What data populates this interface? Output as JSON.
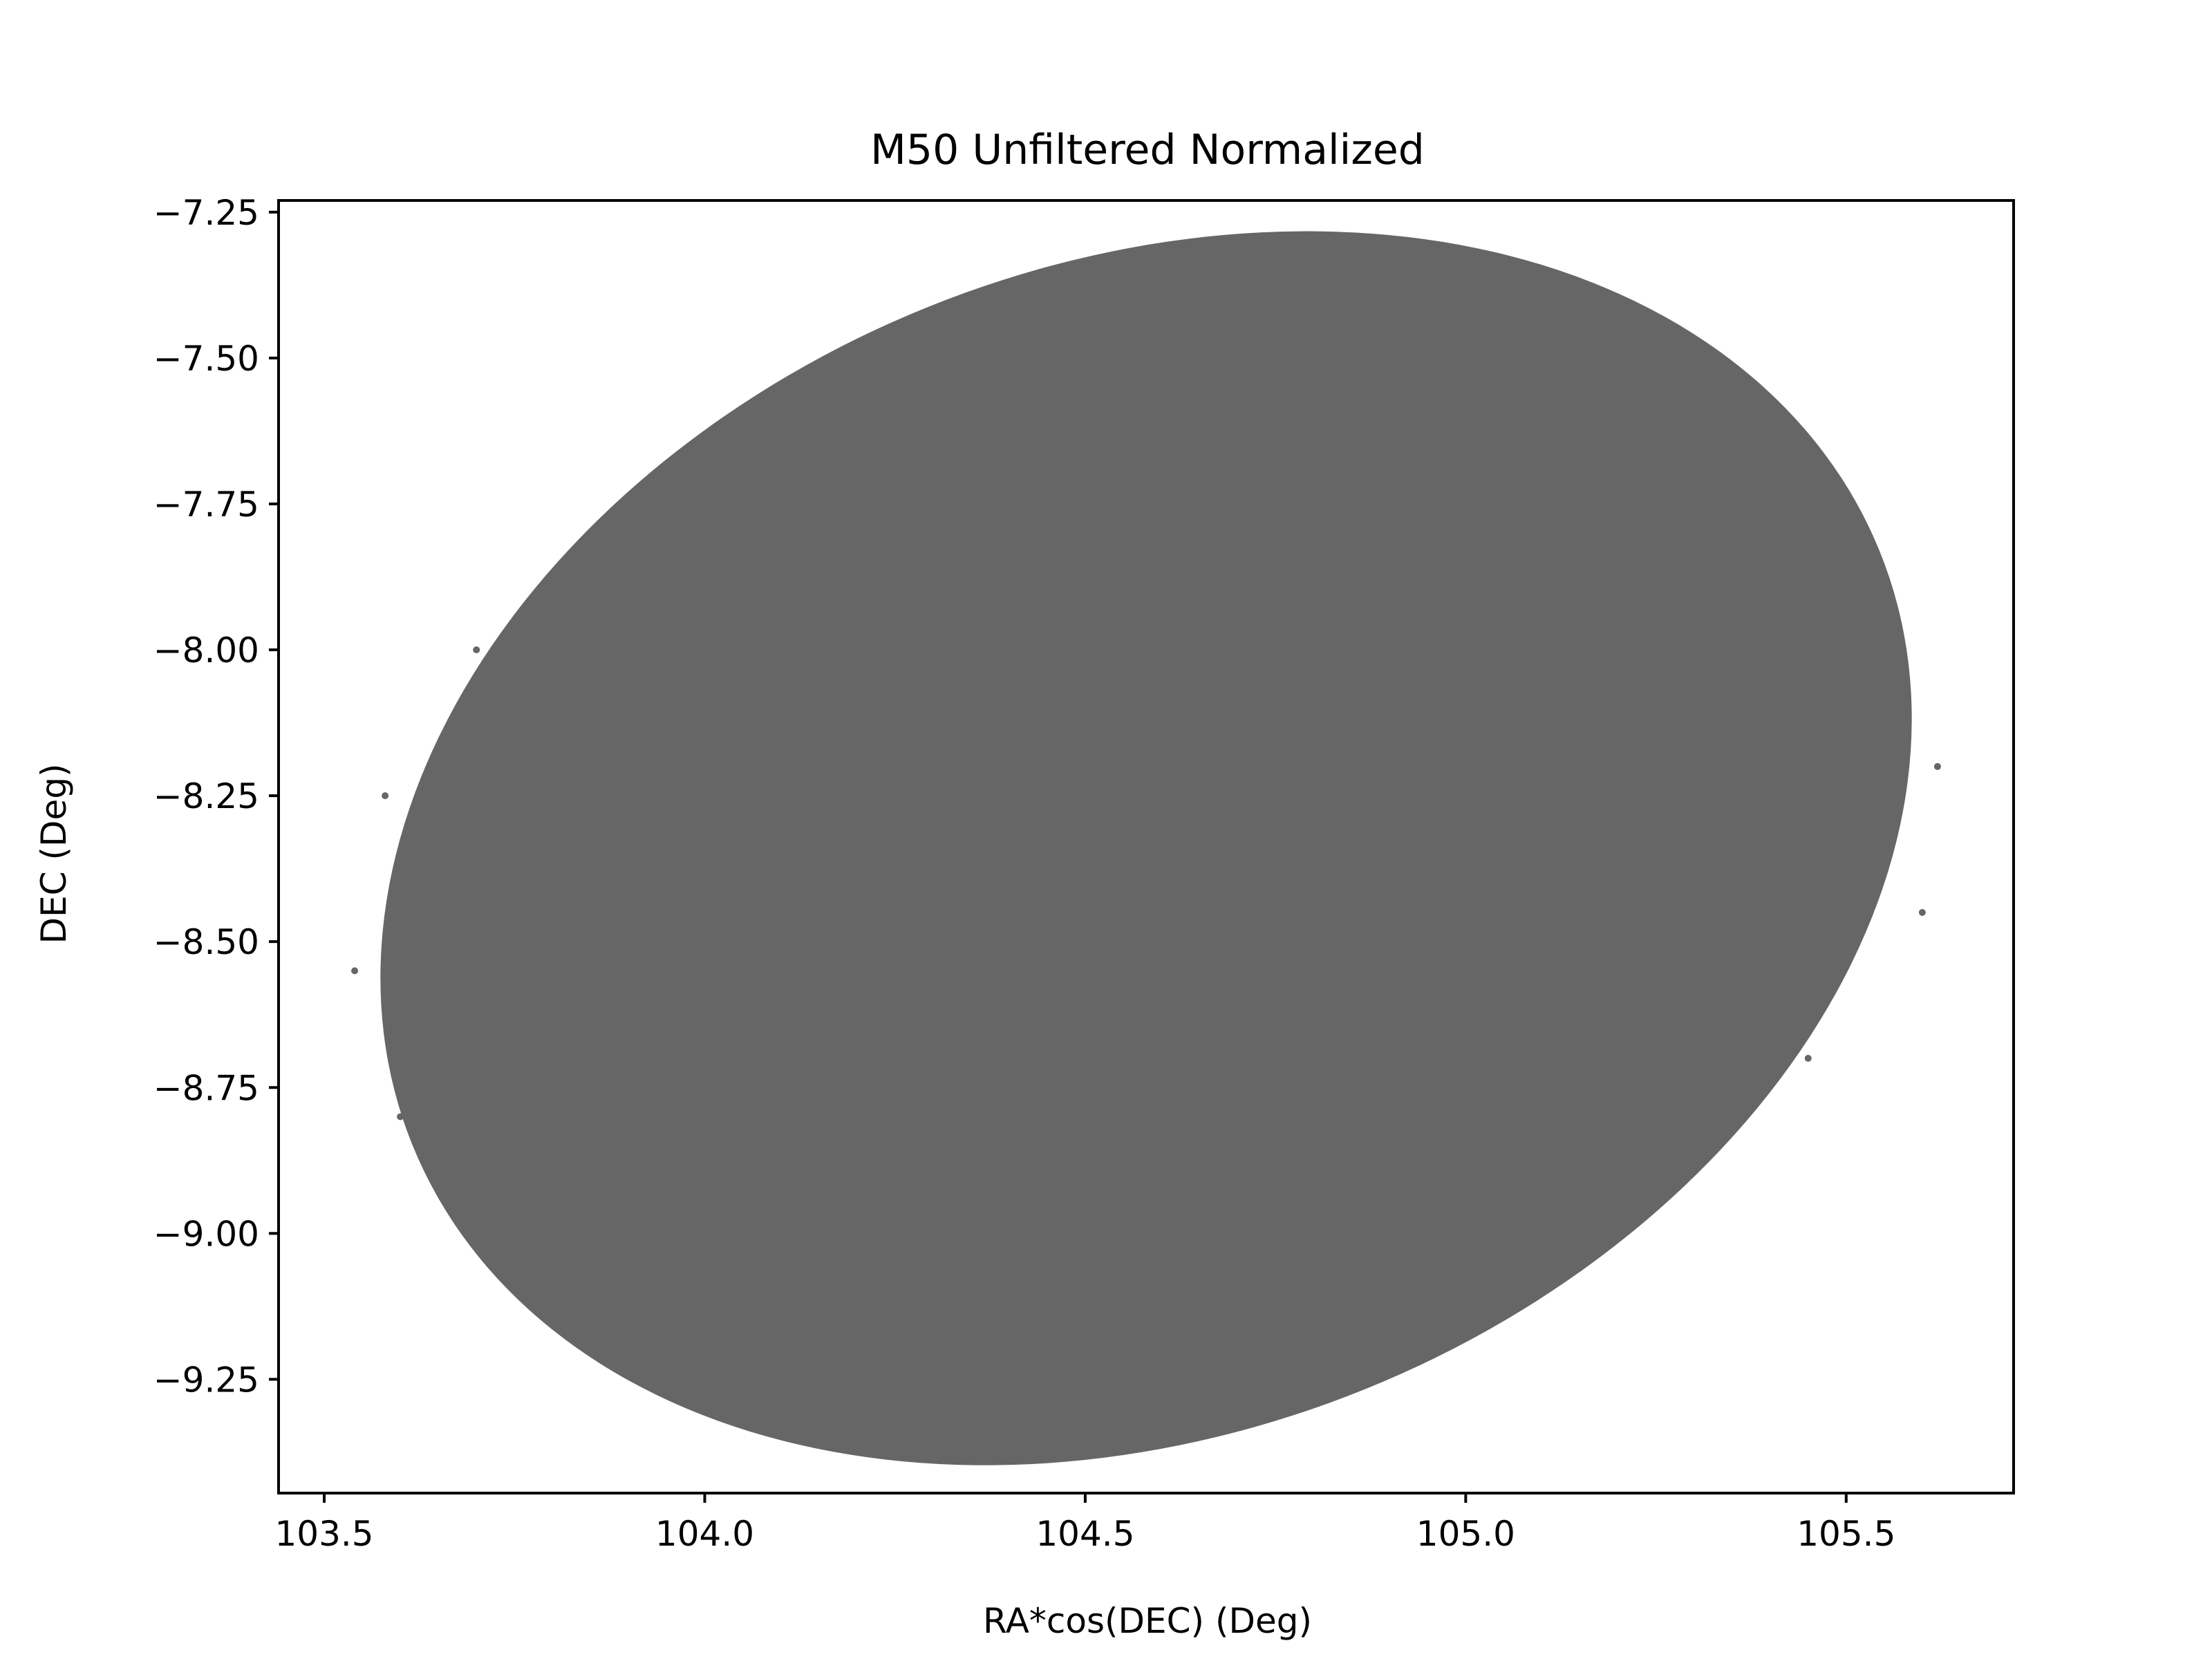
{
  "chart_data": {
    "type": "scatter",
    "title": "M50 Unfiltered Normalized",
    "xlabel": "RA*cos(DEC) (Deg)",
    "ylabel": "DEC (Deg)",
    "xlim": [
      103.44,
      105.72
    ],
    "ylim": [
      -9.445,
      -7.23
    ],
    "x_ticks": [
      103.5,
      104.0,
      104.5,
      105.0,
      105.5
    ],
    "x_tick_labels": [
      "103.5",
      "104.0",
      "104.5",
      "105.0",
      "105.5"
    ],
    "y_ticks": [
      -7.25,
      -7.5,
      -7.75,
      -8.0,
      -8.25,
      -8.5,
      -8.75,
      -9.0,
      -9.25
    ],
    "y_tick_labels": [
      "−7.25",
      "−7.50",
      "−7.75",
      "−8.00",
      "−8.25",
      "−8.50",
      "−8.75",
      "−9.00",
      "−9.25"
    ],
    "grid": false,
    "legend": false,
    "marker_color": "#666666",
    "series": [
      {
        "region": "ellipse",
        "center": [
          104.58,
          -8.34
        ],
        "extent_ra_deg": [
          103.54,
          105.62
        ],
        "extent_dec_deg": [
          -9.34,
          -7.34
        ],
        "points": [
          [
            104.58,
            -7.34
          ],
          [
            104.8,
            -7.345
          ],
          [
            105.0,
            -7.39
          ],
          [
            105.2,
            -7.52
          ],
          [
            105.4,
            -7.78
          ],
          [
            105.56,
            -8.0
          ],
          [
            105.62,
            -8.2
          ],
          [
            105.6,
            -8.45
          ],
          [
            105.45,
            -8.7
          ],
          [
            105.25,
            -8.92
          ],
          [
            105.0,
            -9.09
          ],
          [
            104.7,
            -9.25
          ],
          [
            104.4,
            -9.33
          ],
          [
            104.2,
            -9.33
          ],
          [
            103.95,
            -9.24
          ],
          [
            103.75,
            -9.05
          ],
          [
            103.6,
            -8.8
          ],
          [
            103.54,
            -8.55
          ],
          [
            103.58,
            -8.25
          ],
          [
            103.7,
            -8.0
          ],
          [
            103.9,
            -7.78
          ],
          [
            104.1,
            -7.6
          ],
          [
            104.35,
            -7.42
          ],
          [
            104.58,
            -8.34
          ]
        ]
      }
    ]
  }
}
